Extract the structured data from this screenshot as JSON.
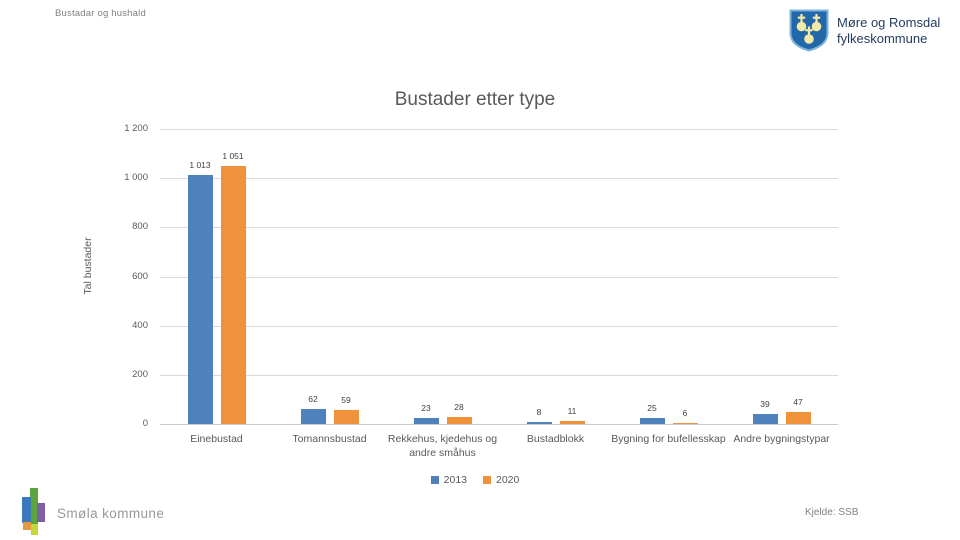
{
  "page": {
    "header": "Bustadar og hushald",
    "org_logo": {
      "icon": "moere-og-romsdal-coat-of-arms-icon",
      "line1": "Møre og Romsdal",
      "line2": "fylkeskommune"
    },
    "footer_left": "Smøla kommune",
    "footer_left_icon": "smola-kommune-logo-icon",
    "footer_right": "Kjelde: SSB"
  },
  "colors": {
    "series_2013_blue": "#4f81bd",
    "series_2020_orange": "#f0913c",
    "gridline_gray": "#dadada",
    "title_gray": "#595959",
    "org_navy": "#1e3a5f",
    "shield_blue": "#2268a8",
    "shield_orbs_yellow": "#f5e9a8"
  },
  "chart_data": {
    "type": "bar",
    "title": "Bustader etter type",
    "xlabel": "",
    "ylabel": "Tal bustader",
    "ylim": [
      0,
      1200
    ],
    "grid": true,
    "legend_position": "bottom",
    "categories": [
      "Einebustad",
      "Tomannsbustad",
      "Rekkehus, kjedehus og andre småhus",
      "Bustadblokk",
      "Bygning for bufellesskap",
      "Andre bygningstypar"
    ],
    "series": [
      {
        "name": "2013",
        "color": "#4f81bd",
        "values": [
          1013,
          62,
          23,
          8,
          25,
          39
        ],
        "value_labels": [
          "1 013",
          "62",
          "23",
          "8",
          "25",
          "39"
        ]
      },
      {
        "name": "2020",
        "color": "#f0913c",
        "values": [
          1051,
          59,
          28,
          11,
          6,
          47
        ],
        "value_labels": [
          "1 051",
          "59",
          "28",
          "11",
          "6",
          "47"
        ]
      }
    ],
    "yticks": {
      "values": [
        0,
        200,
        400,
        600,
        800,
        1000,
        1200
      ],
      "labels": [
        "0",
        "200",
        "400",
        "600",
        "800",
        "1 000",
        "1 200"
      ]
    }
  }
}
